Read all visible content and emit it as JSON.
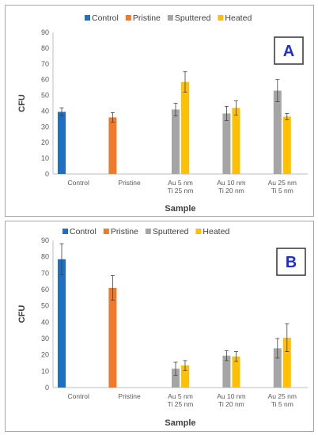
{
  "colors": {
    "Control": "#1f6fc5",
    "Pristine": "#f07a2b",
    "Sputtered": "#a5a5a5",
    "Heated": "#ffc000"
  },
  "chart_data": [
    {
      "type": "bar",
      "panel_label": "A",
      "categories": [
        [
          "Control"
        ],
        [
          "Pristine"
        ],
        [
          "Au 5 nm",
          "Ti 25 nm"
        ],
        [
          "Au 10 nm",
          "Ti 20 nm"
        ],
        [
          "Au 25 nm",
          "Ti 5 nm"
        ]
      ],
      "xlabel": "Sample",
      "ylabel": "CFU",
      "ylim": [
        0,
        90
      ],
      "yticks": [
        0,
        10,
        20,
        30,
        40,
        50,
        60,
        70,
        80,
        90
      ],
      "grid": false,
      "legend": "top",
      "series": [
        {
          "name": "Control",
          "values": [
            39.5,
            null,
            null,
            null,
            null
          ],
          "errors": [
            2.5,
            null,
            null,
            null,
            null
          ]
        },
        {
          "name": "Pristine",
          "values": [
            null,
            36,
            null,
            null,
            null
          ],
          "errors": [
            null,
            3,
            null,
            null,
            null
          ]
        },
        {
          "name": "Sputtered",
          "values": [
            null,
            null,
            41,
            38.5,
            53
          ],
          "errors": [
            null,
            null,
            4,
            4.5,
            7
          ]
        },
        {
          "name": "Heated",
          "values": [
            null,
            null,
            58.5,
            42,
            36.5
          ],
          "errors": [
            null,
            null,
            6.5,
            4.5,
            2
          ]
        }
      ]
    },
    {
      "type": "bar",
      "panel_label": "B",
      "categories": [
        [
          "Control"
        ],
        [
          "Pristine"
        ],
        [
          "Au 5 nm",
          "Ti 25 nm"
        ],
        [
          "Au 10 nm",
          "Ti 20 nm"
        ],
        [
          "Au 25 nm",
          "Ti 5 nm"
        ]
      ],
      "xlabel": "Sample",
      "ylabel": "CFU",
      "ylim": [
        0,
        90
      ],
      "yticks": [
        0,
        10,
        20,
        30,
        40,
        50,
        60,
        70,
        80,
        90
      ],
      "grid": false,
      "legend": "top",
      "series": [
        {
          "name": "Control",
          "values": [
            78.5,
            null,
            null,
            null,
            null
          ],
          "errors": [
            9.5,
            null,
            null,
            null,
            null
          ]
        },
        {
          "name": "Pristine",
          "values": [
            null,
            61,
            null,
            null,
            null
          ],
          "errors": [
            null,
            7.5,
            null,
            null,
            null
          ]
        },
        {
          "name": "Sputtered",
          "values": [
            null,
            null,
            11.5,
            19.5,
            24
          ],
          "errors": [
            null,
            null,
            4,
            3,
            6
          ]
        },
        {
          "name": "Heated",
          "values": [
            null,
            null,
            13.5,
            19,
            30.5
          ],
          "errors": [
            null,
            null,
            3,
            3,
            8.5
          ]
        }
      ]
    }
  ]
}
